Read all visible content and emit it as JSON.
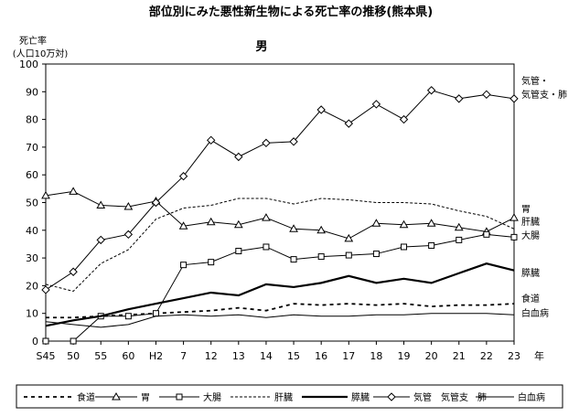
{
  "chart_data": {
    "type": "line",
    "title": "部位別にみた悪性新生物による死亡率の推移(熊本県)",
    "subtitle": "男",
    "ylabel_line1": "死亡率",
    "ylabel_line2": "(人口10万対)",
    "x_unit": "年",
    "ylim": [
      0,
      100
    ],
    "y_ticks": [
      "0",
      "10",
      "20",
      "30",
      "40",
      "50",
      "60",
      "70",
      "80",
      "90",
      "100"
    ],
    "categories": [
      "S45",
      "50",
      "55",
      "60",
      "H2",
      "7",
      "12",
      "13",
      "14",
      "15",
      "16",
      "17",
      "18",
      "19",
      "20",
      "21",
      "22",
      "23"
    ],
    "grid": "none",
    "legend_position": "bottom",
    "series": [
      {
        "name": "食道",
        "legend_label": "食道",
        "end_label": "食道",
        "style": "dashed",
        "marker": "none",
        "values": [
          8.5,
          8.5,
          9,
          9.5,
          10,
          10.5,
          11,
          12,
          11,
          13.5,
          13,
          13.5,
          13,
          13.5,
          12.5,
          13,
          13,
          13.5
        ]
      },
      {
        "name": "胃",
        "legend_label": "胃",
        "end_label": "胃",
        "style": "thin",
        "marker": "triangle",
        "values": [
          52.5,
          54,
          49,
          48.5,
          50.5,
          41.5,
          43,
          42,
          44.5,
          40.5,
          40,
          37,
          42.5,
          42,
          42.5,
          41,
          39.5,
          44.5
        ]
      },
      {
        "name": "大腸",
        "legend_label": "大腸",
        "end_label": "大腸",
        "style": "thin",
        "marker": "square",
        "values": [
          0,
          0,
          9,
          9,
          10,
          27.5,
          28.5,
          32.5,
          34,
          29.5,
          30.5,
          31,
          31.5,
          34,
          34.5,
          36.5,
          38.5,
          37.5
        ]
      },
      {
        "name": "肝臓",
        "legend_label": "肝臓",
        "end_label": "肝臓",
        "style": "dotted",
        "marker": "none",
        "values": [
          20.5,
          18,
          28,
          33,
          44,
          48,
          49,
          51.5,
          51.5,
          49.5,
          51.5,
          51,
          50,
          50,
          49.5,
          47,
          45,
          40.5
        ]
      },
      {
        "name": "膵臓",
        "legend_label": "膵臓",
        "end_label": "膵臓",
        "style": "thick",
        "marker": "none",
        "values": [
          5.5,
          7.5,
          9,
          11.5,
          13.5,
          15.5,
          17.5,
          16.5,
          20.5,
          19.5,
          21,
          23.5,
          21,
          22.5,
          21,
          24.5,
          28,
          25.5
        ]
      },
      {
        "name": "気管 気管支 肺",
        "legend_label": "気管　気管支　肺",
        "end_label": "気管・\n気管支・肺",
        "style": "thin",
        "marker": "diamond",
        "values": [
          18.5,
          25,
          36.5,
          38.5,
          50,
          59.5,
          72.5,
          66.5,
          71.5,
          72,
          83.5,
          78.5,
          85.5,
          80,
          90.5,
          87.5,
          89,
          87.5
        ]
      },
      {
        "name": "白血病",
        "legend_label": "白血病",
        "end_label": "白血病",
        "style": "thin",
        "marker": "none",
        "values": [
          7,
          6,
          5,
          6,
          9,
          9.5,
          9,
          9.5,
          8.5,
          9.5,
          9,
          9,
          9.5,
          9.5,
          10,
          10,
          10,
          9.5
        ]
      }
    ]
  },
  "colors": {
    "line": "#000000",
    "background": "#ffffff"
  }
}
